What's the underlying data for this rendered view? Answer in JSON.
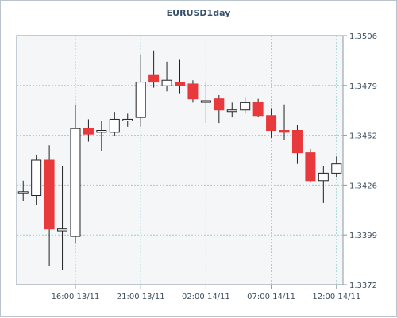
{
  "chart_data": {
    "type": "candlestick",
    "title": "EURUSD1day",
    "xlabel": "",
    "ylabel": "",
    "ylim": [
      1.3372,
      1.3506
    ],
    "yticks": [
      "1.3506",
      "1.3479",
      "1.3452",
      "1.3426",
      "1.3399",
      "1.3372"
    ],
    "xticks": [
      {
        "index": 4.5,
        "label": "16:00 13/11"
      },
      {
        "index": 9.5,
        "label": "21:00 13/11"
      },
      {
        "index": 14.5,
        "label": "02:00 14/11"
      },
      {
        "index": 19.5,
        "label": "07:00 14/11"
      },
      {
        "index": 24.5,
        "label": "12:00 14/11"
      }
    ],
    "grid": true,
    "up_color": "#ffffff",
    "down_color": "#e8393c",
    "candles": [
      {
        "open": 1.3421,
        "high": 1.3428,
        "low": 1.3417,
        "close": 1.3422
      },
      {
        "open": 1.342,
        "high": 1.3442,
        "low": 1.3415,
        "close": 1.3439
      },
      {
        "open": 1.3439,
        "high": 1.3447,
        "low": 1.3382,
        "close": 1.3402
      },
      {
        "open": 1.3401,
        "high": 1.3436,
        "low": 1.338,
        "close": 1.3402
      },
      {
        "open": 1.3398,
        "high": 1.3469,
        "low": 1.3394,
        "close": 1.3456
      },
      {
        "open": 1.3456,
        "high": 1.3461,
        "low": 1.3449,
        "close": 1.3453
      },
      {
        "open": 1.3454,
        "high": 1.346,
        "low": 1.3444,
        "close": 1.3455
      },
      {
        "open": 1.3454,
        "high": 1.3465,
        "low": 1.3452,
        "close": 1.3461
      },
      {
        "open": 1.3461,
        "high": 1.3464,
        "low": 1.3457,
        "close": 1.3461
      },
      {
        "open": 1.3462,
        "high": 1.3496,
        "low": 1.3457,
        "close": 1.3481
      },
      {
        "open": 1.3485,
        "high": 1.3498,
        "low": 1.3478,
        "close": 1.3481
      },
      {
        "open": 1.3479,
        "high": 1.3492,
        "low": 1.3476,
        "close": 1.3482
      },
      {
        "open": 1.3481,
        "high": 1.3493,
        "low": 1.3475,
        "close": 1.3479
      },
      {
        "open": 1.348,
        "high": 1.3482,
        "low": 1.347,
        "close": 1.3472
      },
      {
        "open": 1.3471,
        "high": 1.3481,
        "low": 1.3459,
        "close": 1.3471
      },
      {
        "open": 1.3472,
        "high": 1.3474,
        "low": 1.3459,
        "close": 1.3466
      },
      {
        "open": 1.3466,
        "high": 1.347,
        "low": 1.3462,
        "close": 1.3466
      },
      {
        "open": 1.3466,
        "high": 1.3473,
        "low": 1.3464,
        "close": 1.347
      },
      {
        "open": 1.347,
        "high": 1.3472,
        "low": 1.3462,
        "close": 1.3463
      },
      {
        "open": 1.3463,
        "high": 1.3467,
        "low": 1.3451,
        "close": 1.3455
      },
      {
        "open": 1.3455,
        "high": 1.3469,
        "low": 1.345,
        "close": 1.3454
      },
      {
        "open": 1.3455,
        "high": 1.3458,
        "low": 1.3437,
        "close": 1.3443
      },
      {
        "open": 1.3443,
        "high": 1.3445,
        "low": 1.3427,
        "close": 1.3428
      },
      {
        "open": 1.3428,
        "high": 1.3436,
        "low": 1.3416,
        "close": 1.3432
      },
      {
        "open": 1.3432,
        "high": 1.3441,
        "low": 1.343,
        "close": 1.3437
      }
    ]
  }
}
